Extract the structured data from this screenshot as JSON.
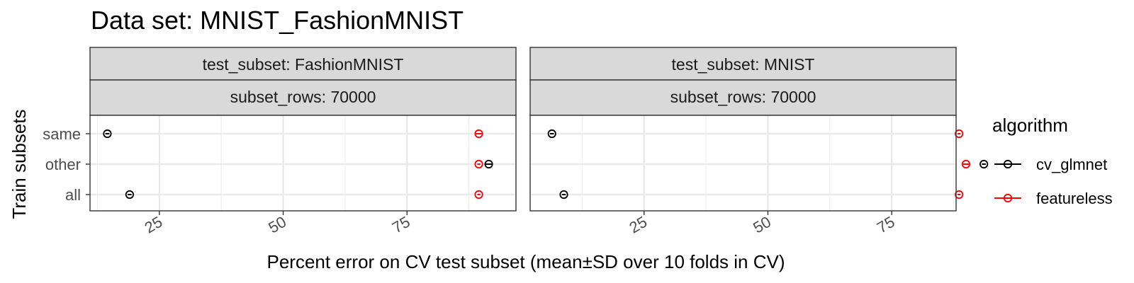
{
  "chart_data": {
    "type": "scatter",
    "title": "Data set: MNIST_FashionMNIST",
    "xlabel": "Percent error on CV test subset (mean±SD over 10 folds in CV)",
    "ylabel": "Train subsets",
    "y_categories": [
      "same",
      "other",
      "all"
    ],
    "x_ticks": [
      25,
      50,
      75
    ],
    "grid": true,
    "legend": {
      "title": "algorithm",
      "position": "right",
      "entries": [
        {
          "name": "cv_glmnet",
          "color": "#000000"
        },
        {
          "name": "featureless",
          "color": "#ff0000"
        }
      ]
    },
    "panels": [
      {
        "strip_top": "test_subset: FashionMNIST",
        "strip_bottom": "subset_rows: 70000",
        "xlim": [
          11,
          97
        ],
        "points": [
          {
            "y": "same",
            "algorithm": "cv_glmnet",
            "mean": 14.5,
            "sd": 0.4
          },
          {
            "y": "same",
            "algorithm": "featureless",
            "mean": 89.5,
            "sd": 0.6
          },
          {
            "y": "other",
            "algorithm": "cv_glmnet",
            "mean": 91.5,
            "sd": 0.8
          },
          {
            "y": "other",
            "algorithm": "featureless",
            "mean": 89.5,
            "sd": 0.3
          },
          {
            "y": "all",
            "algorithm": "cv_glmnet",
            "mean": 19.0,
            "sd": 0.4
          },
          {
            "y": "all",
            "algorithm": "featureless",
            "mean": 89.5,
            "sd": 0.3
          }
        ]
      },
      {
        "strip_top": "test_subset: MNIST",
        "strip_bottom": "subset_rows: 70000",
        "xlim": [
          2,
          88
        ],
        "points": [
          {
            "y": "same",
            "algorithm": "cv_glmnet",
            "mean": 6.4,
            "sd": 0.4
          },
          {
            "y": "same",
            "algorithm": "featureless",
            "mean": 88.6,
            "sd": 0.3
          },
          {
            "y": "other",
            "algorithm": "cv_glmnet",
            "mean": 93.6,
            "sd": 0.4
          },
          {
            "y": "other",
            "algorithm": "featureless",
            "mean": 90.0,
            "sd": 0.6
          },
          {
            "y": "all",
            "algorithm": "cv_glmnet",
            "mean": 8.8,
            "sd": 0.4
          },
          {
            "y": "all",
            "algorithm": "featureless",
            "mean": 88.6,
            "sd": 0.3
          }
        ]
      }
    ]
  }
}
